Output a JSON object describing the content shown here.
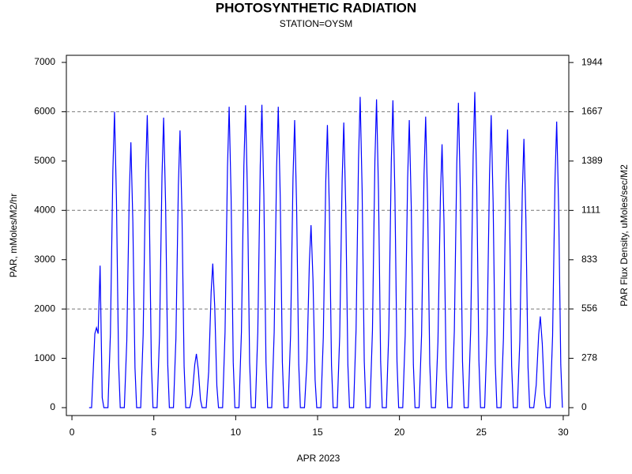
{
  "chart_data": {
    "type": "line",
    "title": "PHOTOSYNTHETIC RADIATION",
    "subtitle": "STATION=OYSM",
    "x_label": "APR 2023",
    "y_label": "PAR, mMoles/M2/hr",
    "y2_label": "PAR Flux Density, uMoles/sec/M2",
    "xlim": [
      -0.34,
      30.34
    ],
    "xticks": [
      0,
      5,
      10,
      15,
      20,
      25,
      30
    ],
    "ylim": [
      -160,
      7144
    ],
    "yticks": [
      0,
      1000,
      2000,
      3000,
      4000,
      5000,
      6000,
      7000
    ],
    "y2lim": [
      -44.4,
      1984.6
    ],
    "y2ticks": [
      0,
      278,
      556,
      833,
      1111,
      1389,
      1667,
      1944
    ],
    "ygrid": [
      2000,
      4000,
      6000
    ],
    "x": [
      1.05,
      1.2,
      1.4,
      1.5,
      1.6,
      1.72,
      1.85,
      1.95,
      2.2,
      2.35,
      2.5,
      2.6,
      2.72,
      2.85,
      2.95,
      3.2,
      3.35,
      3.5,
      3.6,
      3.72,
      3.85,
      3.95,
      4.2,
      4.35,
      4.5,
      4.6,
      4.72,
      4.85,
      4.95,
      5.2,
      5.35,
      5.5,
      5.6,
      5.72,
      5.85,
      5.95,
      6.2,
      6.35,
      6.5,
      6.6,
      6.72,
      6.85,
      6.95,
      7.2,
      7.35,
      7.5,
      7.6,
      7.72,
      7.85,
      7.95,
      8.2,
      8.35,
      8.5,
      8.6,
      8.72,
      8.85,
      8.95,
      9.2,
      9.35,
      9.5,
      9.6,
      9.72,
      9.85,
      9.95,
      10.2,
      10.35,
      10.5,
      10.6,
      10.72,
      10.85,
      10.95,
      11.2,
      11.35,
      11.5,
      11.6,
      11.72,
      11.85,
      11.95,
      12.2,
      12.35,
      12.5,
      12.6,
      12.72,
      12.85,
      12.95,
      13.2,
      13.35,
      13.5,
      13.6,
      13.72,
      13.85,
      13.95,
      14.2,
      14.35,
      14.5,
      14.6,
      14.72,
      14.85,
      14.95,
      15.2,
      15.35,
      15.5,
      15.6,
      15.72,
      15.85,
      15.95,
      16.2,
      16.35,
      16.5,
      16.6,
      16.72,
      16.85,
      16.95,
      17.2,
      17.35,
      17.5,
      17.6,
      17.72,
      17.85,
      17.95,
      18.2,
      18.35,
      18.5,
      18.6,
      18.72,
      18.85,
      18.95,
      19.2,
      19.35,
      19.5,
      19.6,
      19.72,
      19.85,
      19.95,
      20.2,
      20.35,
      20.5,
      20.6,
      20.72,
      20.85,
      20.95,
      21.2,
      21.35,
      21.5,
      21.6,
      21.72,
      21.85,
      21.95,
      22.2,
      22.35,
      22.5,
      22.6,
      22.72,
      22.85,
      22.95,
      23.2,
      23.35,
      23.5,
      23.6,
      23.72,
      23.85,
      23.95,
      24.2,
      24.35,
      24.5,
      24.6,
      24.72,
      24.85,
      24.95,
      25.2,
      25.35,
      25.5,
      25.6,
      25.72,
      25.85,
      25.95,
      26.2,
      26.35,
      26.5,
      26.6,
      26.72,
      26.85,
      26.95,
      27.2,
      27.35,
      27.5,
      27.6,
      27.72,
      27.85,
      27.95,
      28.2,
      28.35,
      28.5,
      28.6,
      28.72,
      28.85,
      28.95,
      29.2,
      29.35,
      29.5,
      29.6,
      29.72,
      29.85,
      29.95
    ],
    "series": [
      {
        "name": "PAR",
        "color": "#0000ff",
        "values": [
          0,
          0,
          1500,
          1620,
          1500,
          2880,
          200,
          0,
          0,
          1500,
          4800,
          6000,
          4200,
          900,
          0,
          0,
          1350,
          4300,
          5380,
          3770,
          810,
          0,
          0,
          1480,
          4740,
          5930,
          4150,
          890,
          0,
          0,
          1470,
          4700,
          5880,
          4120,
          880,
          0,
          0,
          1400,
          4500,
          5620,
          3930,
          840,
          0,
          0,
          270,
          870,
          1090,
          760,
          160,
          0,
          0,
          730,
          2340,
          2920,
          2040,
          440,
          0,
          0,
          1530,
          4880,
          6100,
          4270,
          920,
          0,
          0,
          1530,
          4900,
          6130,
          4290,
          920,
          0,
          0,
          1540,
          4910,
          6140,
          4300,
          920,
          0,
          0,
          1530,
          4880,
          6100,
          4270,
          920,
          0,
          0,
          1460,
          4660,
          5830,
          4080,
          870,
          0,
          0,
          930,
          2960,
          3700,
          2590,
          560,
          0,
          0,
          1430,
          4580,
          5730,
          4010,
          860,
          0,
          0,
          1450,
          4620,
          5780,
          4050,
          870,
          0,
          0,
          1580,
          5040,
          6300,
          4410,
          950,
          0,
          0,
          1560,
          5000,
          6250,
          4380,
          940,
          0,
          0,
          1560,
          4980,
          6230,
          4360,
          930,
          0,
          0,
          1460,
          4660,
          5830,
          4080,
          870,
          0,
          0,
          1480,
          4720,
          5900,
          4130,
          890,
          0,
          0,
          1340,
          4270,
          5340,
          3740,
          800,
          0,
          0,
          1550,
          4940,
          6180,
          4330,
          930,
          0,
          0,
          1600,
          5120,
          6400,
          4480,
          960,
          0,
          0,
          1480,
          4740,
          5930,
          4150,
          890,
          0,
          0,
          1410,
          4510,
          5640,
          3950,
          850,
          0,
          0,
          1360,
          4360,
          5450,
          3820,
          820,
          0,
          0,
          460,
          1480,
          1850,
          1300,
          280,
          0,
          0,
          1450,
          4640,
          5800,
          4060,
          870,
          0
        ]
      }
    ]
  }
}
